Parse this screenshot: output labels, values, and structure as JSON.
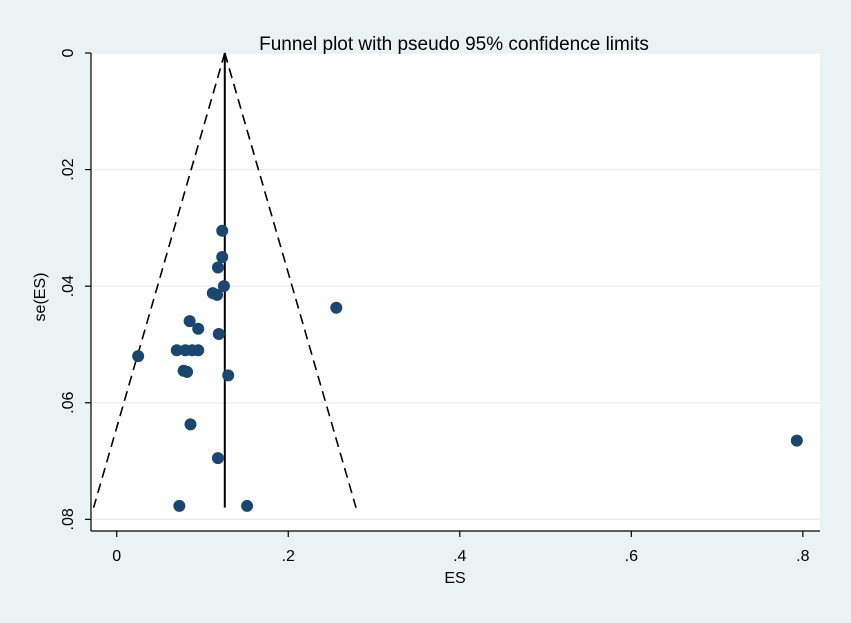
{
  "chart_data": {
    "type": "scatter",
    "title": "Funnel plot with pseudo 95% confidence limits",
    "xlabel": "ES",
    "ylabel": "se(ES)",
    "xlim": [
      -0.03,
      0.82
    ],
    "ylim": [
      0,
      0.082
    ],
    "y_reversed": true,
    "grid": true,
    "x_ticks": [
      {
        "value": 0,
        "label": "0"
      },
      {
        "value": 0.2,
        "label": ".2"
      },
      {
        "value": 0.4,
        "label": ".4"
      },
      {
        "value": 0.6,
        "label": ".6"
      },
      {
        "value": 0.8,
        "label": ".8"
      }
    ],
    "y_ticks": [
      {
        "value": 0,
        "label": "0"
      },
      {
        "value": 0.02,
        "label": ".02"
      },
      {
        "value": 0.04,
        "label": ".04"
      },
      {
        "value": 0.06,
        "label": ".06"
      },
      {
        "value": 0.08,
        "label": ".08"
      }
    ],
    "pooled_effect": 0.126,
    "se_max": 0.078,
    "confidence_limits": {
      "lower_at_se_max": -0.027,
      "upper_at_se_max": 0.279
    },
    "points": [
      {
        "x": 0.123,
        "y": 0.0305
      },
      {
        "x": 0.123,
        "y": 0.035
      },
      {
        "x": 0.118,
        "y": 0.0368
      },
      {
        "x": 0.125,
        "y": 0.04
      },
      {
        "x": 0.112,
        "y": 0.0412
      },
      {
        "x": 0.117,
        "y": 0.0415
      },
      {
        "x": 0.256,
        "y": 0.0437
      },
      {
        "x": 0.085,
        "y": 0.046
      },
      {
        "x": 0.095,
        "y": 0.0473
      },
      {
        "x": 0.119,
        "y": 0.0482
      },
      {
        "x": 0.07,
        "y": 0.051
      },
      {
        "x": 0.08,
        "y": 0.051
      },
      {
        "x": 0.088,
        "y": 0.051
      },
      {
        "x": 0.095,
        "y": 0.051
      },
      {
        "x": 0.025,
        "y": 0.052
      },
      {
        "x": 0.078,
        "y": 0.0545
      },
      {
        "x": 0.082,
        "y": 0.0547
      },
      {
        "x": 0.13,
        "y": 0.0553
      },
      {
        "x": 0.086,
        "y": 0.0637
      },
      {
        "x": 0.118,
        "y": 0.0695
      },
      {
        "x": 0.793,
        "y": 0.0665
      },
      {
        "x": 0.073,
        "y": 0.0777
      },
      {
        "x": 0.152,
        "y": 0.0777
      }
    ]
  },
  "colors": {
    "outer_background": "#eaf2f3",
    "plot_background": "#ffffff",
    "gridline": "#e8eef0",
    "marker": "#1a476f",
    "line": "#000000"
  }
}
